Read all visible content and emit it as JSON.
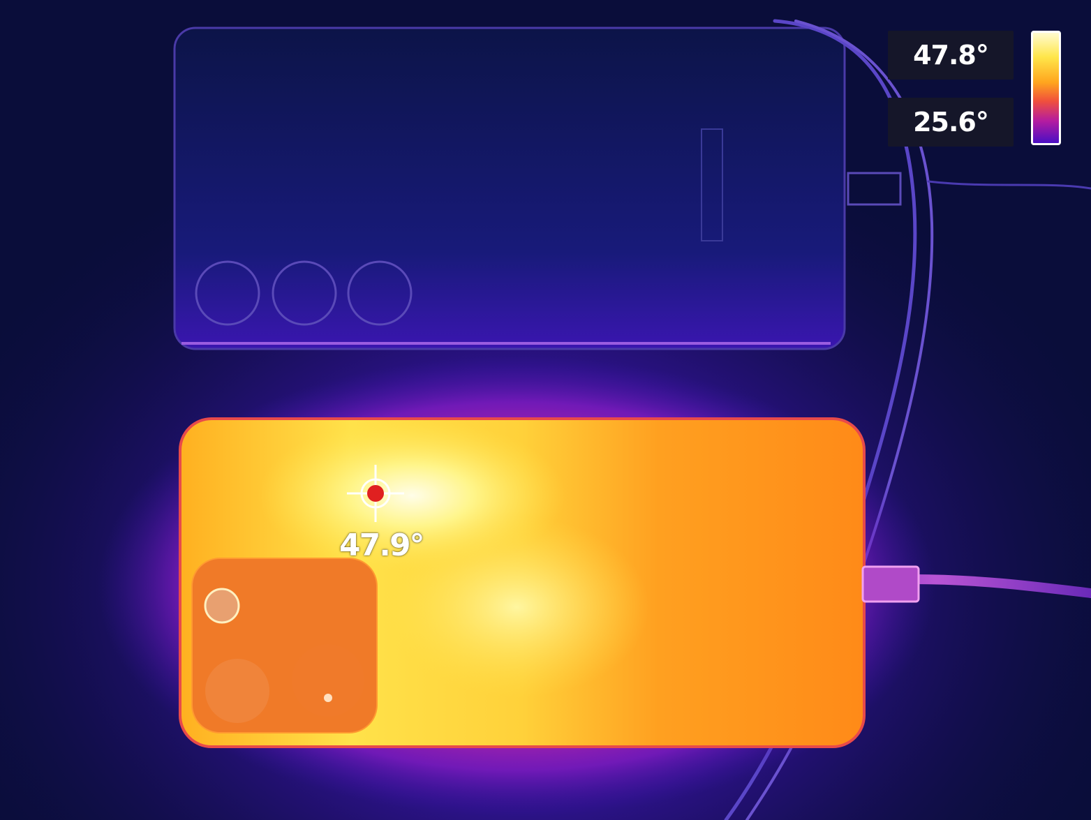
{
  "scale": {
    "max_temp": "47.8°",
    "min_temp": "25.6°",
    "gradient_colors": [
      "#fffbd0",
      "#ffe64a",
      "#ffa51e",
      "#f0503c",
      "#b41ca0",
      "#4a0fc4"
    ]
  },
  "spot": {
    "temp": "47.9°",
    "marker_color": "#e02020"
  },
  "colors": {
    "background": "#0a0d3a",
    "hot": "#ffe64a",
    "warm": "#ffa51e",
    "cool": "#8a1cc8"
  }
}
